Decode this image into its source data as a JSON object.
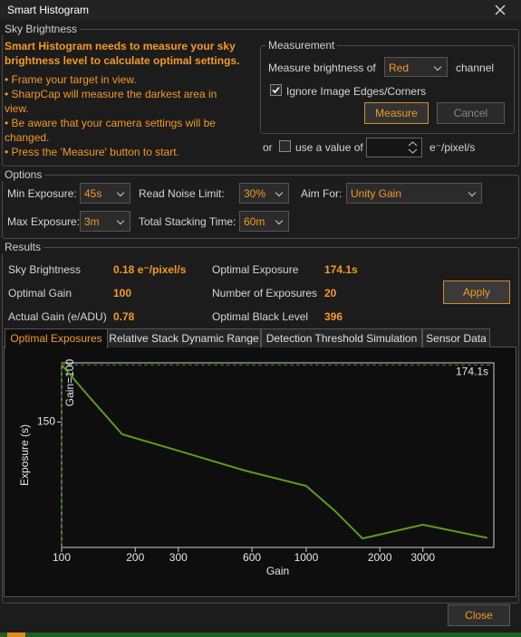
{
  "window": {
    "title": "Smart Histogram"
  },
  "sky": {
    "legend": "Sky Brightness",
    "heading": "Smart Histogram needs to measure your sky brightness level to calculate optimal settings.",
    "bullets": [
      "• Frame your target in view.",
      "• SharpCap will measure the darkest area in view.",
      "• Be aware that your camera settings will be changed.",
      "• Press the 'Measure' button to start."
    ],
    "measurement": {
      "legend": "Measurement",
      "label": "Measure brightness of",
      "channel": "Red",
      "suffix": "channel",
      "checkbox": "Ignore Image Edges/Corners",
      "measure": "Measure",
      "cancel": "Cancel"
    },
    "or": "or",
    "use_value": "use a value of",
    "unit": "e⁻/pixel/s"
  },
  "options": {
    "legend": "Options",
    "min_exposure": {
      "label": "Min Exposure:",
      "value": "45s"
    },
    "read_noise": {
      "label": "Read Noise Limit:",
      "value": "30%"
    },
    "aim_for": {
      "label": "Aim For:",
      "value": "Unity Gain"
    },
    "max_exposure": {
      "label": "Max Exposure:",
      "value": "3m"
    },
    "stacking_time": {
      "label": "Total Stacking Time:",
      "value": "60m"
    }
  },
  "results": {
    "legend": "Results",
    "rows": [
      [
        [
          "Sky Brightness",
          "0.18 e⁻/pixel/s"
        ],
        [
          "Optimal Exposure",
          "174.1s"
        ]
      ],
      [
        [
          "Optimal Gain",
          "100"
        ],
        [
          "Number of Exposures",
          "20"
        ]
      ],
      [
        [
          "Actual Gain (e/ADU)",
          "0.78"
        ],
        [
          "Optimal Black Level",
          "396"
        ]
      ]
    ],
    "apply": "Apply"
  },
  "tabs": [
    "Optimal Exposures",
    "Relative Stack Dynamic Range",
    "Detection Threshold Simulation",
    "Sensor Data"
  ],
  "chart_data": {
    "type": "line",
    "x_label": "Gain",
    "y_label": "Exposure (s)",
    "x_log": true,
    "color": "#5a9e1c",
    "x": [
      100,
      131,
      177,
      308,
      560,
      1000,
      1315,
      1700,
      3000,
      5500
    ],
    "values": [
      174.1,
      160.1,
      144.8,
      137.5,
      129.5,
      123,
      112.3,
      100.8,
      106.6,
      101
    ],
    "xlim": [
      100,
      5850
    ],
    "ylim": [
      97,
      175
    ],
    "xticks": [
      100,
      200,
      300,
      600,
      1000,
      2000,
      3000
    ],
    "yticks": [
      150
    ],
    "annotations": [
      {
        "axis": "x",
        "value": 100,
        "label": "Gain=100"
      },
      {
        "axis": "y",
        "value": 174.1,
        "label": "174.1s"
      }
    ]
  },
  "footer": {
    "close": "Close"
  }
}
